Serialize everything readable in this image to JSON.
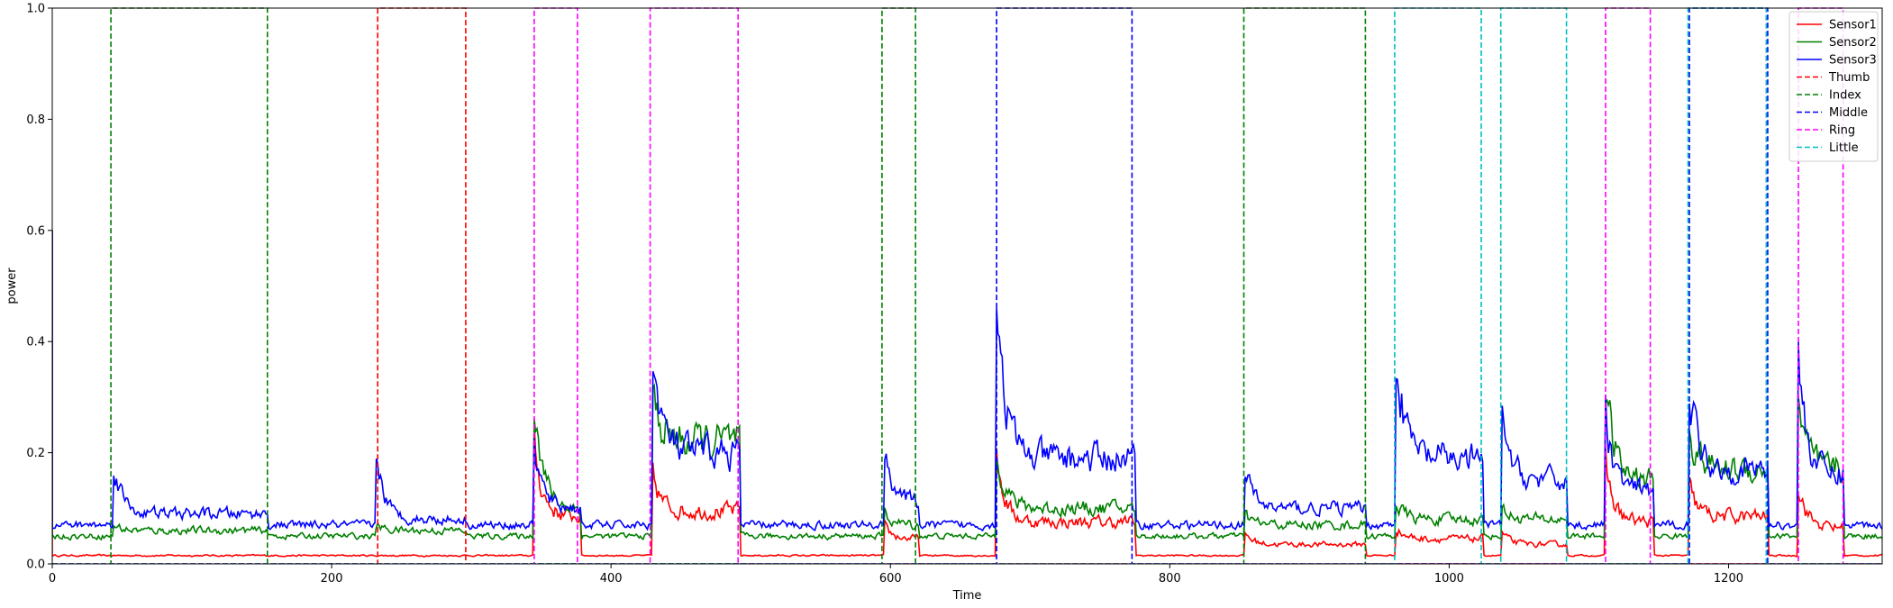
{
  "chart_data": {
    "type": "line",
    "title": "",
    "xlabel": "Time",
    "ylabel": "power",
    "xlim": [
      0,
      1310
    ],
    "ylim": [
      0,
      1.0
    ],
    "xticks": [
      0,
      200,
      400,
      600,
      800,
      1000,
      1200
    ],
    "yticks": [
      0.0,
      0.2,
      0.4,
      0.6,
      0.8,
      1.0
    ],
    "xtick_labels": [
      "0",
      "200",
      "400",
      "600",
      "800",
      "1000",
      "1200"
    ],
    "ytick_labels": [
      "0.0",
      "0.2",
      "0.4",
      "0.6",
      "0.8",
      "1.0"
    ],
    "grid": false,
    "legend_position": "top-right",
    "series": [
      {
        "name": "Sensor1",
        "color": "#ff0000",
        "dash": "solid",
        "kind": "sensor",
        "base": 0.015,
        "bursts": [
          [
            345,
            378,
            0.07,
            0.2
          ],
          [
            430,
            492,
            0.08,
            0.14
          ],
          [
            596,
            620,
            0.03,
            0.05
          ],
          [
            676,
            775,
            0.06,
            0.18
          ],
          [
            854,
            940,
            0.02,
            0.04
          ],
          [
            962,
            1024,
            0.03,
            0.05
          ],
          [
            1038,
            1084,
            0.02,
            0.04
          ],
          [
            1112,
            1146,
            0.06,
            0.16
          ],
          [
            1172,
            1228,
            0.07,
            0.12
          ],
          [
            1250,
            1282,
            0.05,
            0.13
          ]
        ]
      },
      {
        "name": "Sensor2",
        "color": "#008000",
        "dash": "solid",
        "kind": "sensor",
        "base": 0.05,
        "bursts": [
          [
            44,
            154,
            0.01,
            0.02
          ],
          [
            232,
            296,
            0.01,
            0.02
          ],
          [
            345,
            378,
            0.05,
            0.27
          ],
          [
            430,
            492,
            0.17,
            0.25
          ],
          [
            596,
            620,
            0.02,
            0.04
          ],
          [
            676,
            775,
            0.05,
            0.17
          ],
          [
            854,
            940,
            0.02,
            0.04
          ],
          [
            962,
            1024,
            0.03,
            0.06
          ],
          [
            1038,
            1084,
            0.03,
            0.05
          ],
          [
            1112,
            1146,
            0.1,
            0.28
          ],
          [
            1172,
            1228,
            0.12,
            0.2
          ],
          [
            1250,
            1282,
            0.12,
            0.24
          ]
        ]
      },
      {
        "name": "Sensor3",
        "color": "#0000ff",
        "dash": "solid",
        "kind": "sensor",
        "base": 0.07,
        "bursts": [
          [
            44,
            154,
            0.02,
            0.12
          ],
          [
            232,
            296,
            0.01,
            0.13
          ],
          [
            345,
            378,
            0.03,
            0.14
          ],
          [
            430,
            492,
            0.13,
            0.31
          ],
          [
            596,
            620,
            0.04,
            0.14
          ],
          [
            676,
            775,
            0.12,
            0.45
          ],
          [
            854,
            940,
            0.03,
            0.1
          ],
          [
            962,
            1024,
            0.12,
            0.32
          ],
          [
            1038,
            1084,
            0.08,
            0.19
          ],
          [
            1112,
            1146,
            0.06,
            0.2
          ],
          [
            1172,
            1228,
            0.1,
            0.26
          ],
          [
            1250,
            1282,
            0.09,
            0.3
          ]
        ]
      },
      {
        "name": "Thumb",
        "color": "#ff0000",
        "dash": "dashed",
        "kind": "step",
        "intervals": [
          [
            233,
            296
          ]
        ]
      },
      {
        "name": "Index",
        "color": "#008000",
        "dash": "dashed",
        "kind": "step",
        "intervals": [
          [
            42,
            154
          ],
          [
            594,
            618
          ],
          [
            853,
            940
          ]
        ]
      },
      {
        "name": "Middle",
        "color": "#0000ff",
        "dash": "dashed",
        "kind": "step",
        "intervals": [
          [
            676,
            773
          ],
          [
            1172,
            1228
          ]
        ]
      },
      {
        "name": "Ring",
        "color": "#ff00ff",
        "dash": "dashed",
        "kind": "step",
        "intervals": [
          [
            345,
            376
          ],
          [
            428,
            491
          ],
          [
            1112,
            1144
          ],
          [
            1250,
            1282
          ]
        ]
      },
      {
        "name": "Little",
        "color": "#00bfbf",
        "dash": "dashed",
        "kind": "step",
        "intervals": [
          [
            961,
            1023
          ],
          [
            1037,
            1084
          ],
          [
            1171,
            1227
          ]
        ]
      }
    ]
  }
}
